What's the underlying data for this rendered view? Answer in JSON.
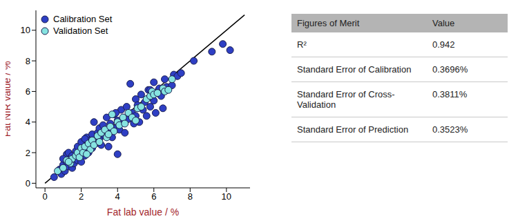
{
  "chart_data": {
    "type": "scatter",
    "x_label": "Fat lab value / %",
    "y_label": "Fat NIR value / %",
    "xlim": [
      -0.5,
      11.3
    ],
    "ylim": [
      -0.3,
      11.3
    ],
    "xticks": [
      0,
      2,
      4,
      6,
      8,
      10
    ],
    "yticks": [
      0,
      2,
      4,
      6,
      8,
      10
    ],
    "grid": false,
    "legend": "upper left",
    "marker": "circle",
    "reference_line": {
      "x": [
        0,
        11
      ],
      "y": [
        0,
        11
      ]
    },
    "series": [
      {
        "name": "Calibration Set",
        "color": "#2e3fc4",
        "x": [
          0.5,
          0.8,
          0.9,
          1.0,
          1.1,
          1.2,
          1.2,
          1.3,
          1.3,
          1.4,
          1.5,
          1.5,
          1.6,
          1.7,
          1.8,
          1.8,
          1.9,
          2.0,
          2.0,
          2.1,
          2.2,
          2.3,
          2.3,
          2.4,
          2.5,
          2.6,
          2.6,
          2.7,
          2.8,
          2.9,
          3.0,
          3.0,
          3.1,
          3.2,
          3.3,
          3.4,
          3.5,
          3.5,
          3.6,
          3.7,
          3.8,
          3.9,
          4.0,
          4.0,
          4.1,
          4.2,
          4.3,
          4.4,
          4.5,
          4.6,
          4.7,
          4.8,
          4.9,
          5.0,
          5.0,
          5.1,
          5.2,
          5.3,
          5.4,
          5.5,
          5.6,
          5.7,
          5.8,
          5.9,
          6.0,
          6.0,
          6.1,
          6.2,
          6.3,
          6.4,
          6.5,
          6.6,
          6.7,
          7.0,
          7.1,
          7.3,
          7.5,
          8.2,
          9.2,
          9.8,
          10.2,
          5.8,
          1.0,
          2.2,
          3.9
        ],
        "values": [
          0.4,
          0.9,
          0.6,
          1.2,
          0.8,
          1.4,
          1.9,
          1.1,
          2.0,
          1.6,
          1.0,
          1.8,
          1.3,
          2.1,
          1.5,
          2.4,
          1.9,
          1.4,
          2.7,
          2.2,
          1.8,
          2.5,
          3.0,
          2.0,
          2.8,
          3.2,
          2.3,
          4.0,
          2.6,
          3.3,
          2.9,
          3.6,
          2.5,
          3.8,
          3.1,
          4.3,
          3.4,
          2.4,
          3.9,
          3.0,
          4.5,
          3.6,
          4.1,
          1.9,
          3.5,
          4.8,
          4.0,
          3.3,
          5.0,
          4.2,
          6.5,
          4.6,
          3.9,
          5.5,
          4.4,
          5.1,
          4.0,
          5.8,
          4.8,
          5.3,
          4.4,
          6.1,
          5.0,
          5.6,
          6.6,
          5.4,
          4.6,
          6.0,
          6.2,
          5.7,
          4.9,
          6.8,
          6.3,
          6.4,
          7.1,
          7.0,
          7.2,
          8.0,
          8.6,
          9.1,
          8.7,
          6.1,
          1.6,
          2.9,
          4.6
        ]
      },
      {
        "name": "Validation Set",
        "color": "#86e3e0",
        "x": [
          0.7,
          1.0,
          1.2,
          1.4,
          1.5,
          1.7,
          1.8,
          1.9,
          2.0,
          2.1,
          2.2,
          2.4,
          2.5,
          2.6,
          2.7,
          2.9,
          3.0,
          3.1,
          3.3,
          3.4,
          3.6,
          3.7,
          3.8,
          4.0,
          4.1,
          4.3,
          4.4,
          4.6,
          4.8,
          5.0,
          5.1,
          5.3,
          5.6,
          5.8,
          5.9,
          6.0,
          6.2,
          6.5,
          6.6,
          6.8,
          7.0,
          1.3,
          2.3,
          3.5
        ],
        "values": [
          0.8,
          1.0,
          1.5,
          1.3,
          1.6,
          1.8,
          2.0,
          1.7,
          2.3,
          2.0,
          2.4,
          2.6,
          2.2,
          2.8,
          2.5,
          3.1,
          2.7,
          3.3,
          3.5,
          3.0,
          3.7,
          4.5,
          3.4,
          4.0,
          3.8,
          4.3,
          3.9,
          4.6,
          4.3,
          4.1,
          4.9,
          5.0,
          5.5,
          5.7,
          6.0,
          5.8,
          5.9,
          6.2,
          6.0,
          6.1,
          6.8,
          1.4,
          1.9,
          3.2
        ]
      }
    ]
  },
  "table": {
    "header": [
      "Figures of Merit",
      "Value"
    ],
    "rows": [
      [
        "R²",
        "0.942"
      ],
      [
        "Standard Error of Calibration",
        "0.3696%"
      ],
      [
        "Standard Error of Cross-Validation",
        "0.3811%"
      ],
      [
        "Standard Error of Prediction",
        "0.3523%"
      ]
    ]
  }
}
